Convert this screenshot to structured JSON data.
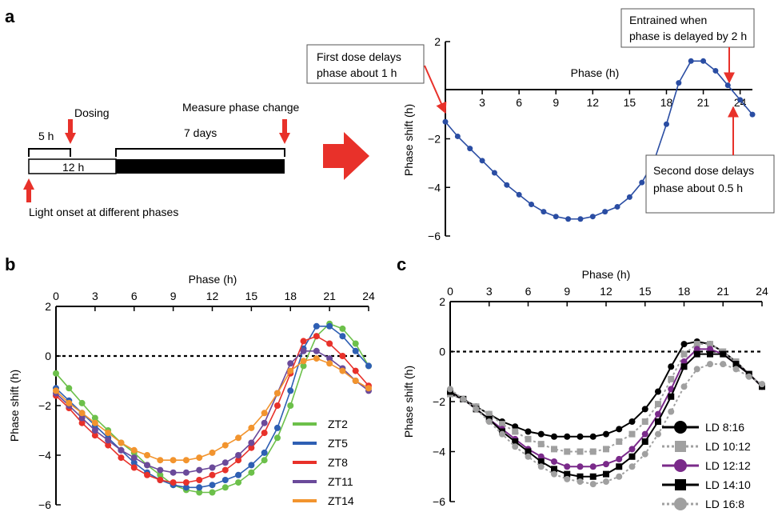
{
  "panels": {
    "a": "a",
    "b": "b",
    "c": "c"
  },
  "schematic": {
    "dosing": "Dosing",
    "measure": "Measure phase change",
    "five_h": "5 h",
    "seven_days": "7 days",
    "twelve_h": "12 h",
    "light_onset": "Light onset at different phases"
  },
  "callouts": {
    "first_dose_1": "First dose delays",
    "first_dose_2": "phase about 1 h",
    "entrained_1": "Entrained when",
    "entrained_2": "phase is delayed by 2 h",
    "second_dose_1": "Second dose delays",
    "second_dose_2": "phase about 0.5 h"
  },
  "colors": {
    "arrow": "#e8312a",
    "line_a": "#2a4da3",
    "ZT2": "#6cc04a",
    "ZT5": "#2e5fb3",
    "ZT8": "#e8312a",
    "ZT11": "#6b4a9a",
    "ZT14": "#f2942e",
    "LD8_16": "#000000",
    "LD10_12": "#a0a0a0",
    "LD12_12": "#7a2a8a",
    "LD14_10": "#000000",
    "LD16_8": "#a0a0a0"
  },
  "chart_data": [
    {
      "id": "a",
      "type": "line",
      "xlabel": "Phase (h)",
      "ylabel": "Phase shift (h)",
      "xticks": [
        3,
        6,
        9,
        12,
        15,
        18,
        21,
        24
      ],
      "yticks": [
        2,
        -2,
        -4,
        -6
      ],
      "xlim": [
        0,
        25
      ],
      "ylim": [
        -6,
        2
      ],
      "zero_line": false,
      "series": [
        {
          "x": [
            0,
            1,
            2,
            3,
            4,
            5,
            6,
            7,
            8,
            9,
            10,
            11,
            12,
            13,
            14,
            15,
            16,
            17,
            18,
            19,
            20,
            21,
            22,
            23,
            24,
            25
          ],
          "y": [
            -1.3,
            -1.9,
            -2.4,
            -2.9,
            -3.4,
            -3.9,
            -4.3,
            -4.7,
            -5.0,
            -5.2,
            -5.3,
            -5.3,
            -5.2,
            -5.0,
            -4.8,
            -4.4,
            -3.8,
            -2.9,
            -1.4,
            0.3,
            1.2,
            1.2,
            0.8,
            0.2,
            -0.4,
            -1.0
          ]
        }
      ]
    },
    {
      "id": "b",
      "type": "line",
      "xlabel": "Phase (h)",
      "ylabel": "Phase shift (h)",
      "xticks": [
        0,
        3,
        6,
        9,
        12,
        15,
        18,
        21,
        24
      ],
      "yticks": [
        2,
        0,
        -2,
        -4,
        -6
      ],
      "xlim": [
        0,
        24
      ],
      "ylim": [
        -6,
        2
      ],
      "zero_line": true,
      "legend_placement": "bottom-right",
      "series": [
        {
          "name": "ZT2",
          "color_key": "ZT2",
          "marker": "circle",
          "x": [
            0,
            1,
            2,
            3,
            4,
            5,
            6,
            7,
            8,
            9,
            10,
            11,
            12,
            13,
            14,
            15,
            16,
            17,
            18,
            19,
            20,
            21,
            22,
            23,
            24
          ],
          "y": [
            -0.7,
            -1.3,
            -1.9,
            -2.5,
            -3.0,
            -3.5,
            -3.9,
            -4.4,
            -4.8,
            -5.2,
            -5.4,
            -5.5,
            -5.5,
            -5.3,
            -5.1,
            -4.7,
            -4.2,
            -3.3,
            -2.0,
            -0.4,
            0.8,
            1.3,
            1.1,
            0.5,
            -0.4
          ]
        },
        {
          "name": "ZT5",
          "color_key": "ZT5",
          "marker": "circle",
          "x": [
            0,
            1,
            2,
            3,
            4,
            5,
            6,
            7,
            8,
            9,
            10,
            11,
            12,
            13,
            14,
            15,
            16,
            17,
            18,
            19,
            20,
            21,
            22,
            23,
            24
          ],
          "y": [
            -1.3,
            -1.8,
            -2.3,
            -2.8,
            -3.3,
            -3.8,
            -4.3,
            -4.7,
            -5.0,
            -5.2,
            -5.3,
            -5.3,
            -5.2,
            -5.0,
            -4.8,
            -4.4,
            -3.9,
            -2.9,
            -1.4,
            0.3,
            1.2,
            1.2,
            0.8,
            0.2,
            -0.4
          ]
        },
        {
          "name": "ZT8",
          "color_key": "ZT8",
          "marker": "circle",
          "x": [
            0,
            1,
            2,
            3,
            4,
            5,
            6,
            7,
            8,
            9,
            10,
            11,
            12,
            13,
            14,
            15,
            16,
            17,
            18,
            19,
            20,
            21,
            22,
            23,
            24
          ],
          "y": [
            -1.6,
            -2.1,
            -2.7,
            -3.2,
            -3.6,
            -4.1,
            -4.5,
            -4.8,
            -5.0,
            -5.1,
            -5.1,
            -5.0,
            -4.8,
            -4.6,
            -4.2,
            -3.7,
            -3.1,
            -2.0,
            -0.7,
            0.6,
            0.8,
            0.5,
            0.0,
            -0.6,
            -1.2
          ]
        },
        {
          "name": "ZT11",
          "color_key": "ZT11",
          "marker": "circle",
          "x": [
            0,
            1,
            2,
            3,
            4,
            5,
            6,
            7,
            8,
            9,
            10,
            11,
            12,
            13,
            14,
            15,
            16,
            17,
            18,
            19,
            20,
            21,
            22,
            23,
            24
          ],
          "y": [
            -1.5,
            -2.0,
            -2.5,
            -3.0,
            -3.4,
            -3.8,
            -4.1,
            -4.4,
            -4.6,
            -4.7,
            -4.7,
            -4.6,
            -4.5,
            -4.3,
            -4.0,
            -3.5,
            -2.7,
            -1.5,
            -0.3,
            0.2,
            0.2,
            -0.1,
            -0.5,
            -1.0,
            -1.4
          ]
        },
        {
          "name": "ZT14",
          "color_key": "ZT14",
          "marker": "circle",
          "x": [
            0,
            1,
            2,
            3,
            4,
            5,
            6,
            7,
            8,
            9,
            10,
            11,
            12,
            13,
            14,
            15,
            16,
            17,
            18,
            19,
            20,
            21,
            22,
            23,
            24
          ],
          "y": [
            -1.4,
            -1.9,
            -2.3,
            -2.7,
            -3.1,
            -3.5,
            -3.8,
            -4.0,
            -4.2,
            -4.2,
            -4.2,
            -4.1,
            -3.9,
            -3.6,
            -3.3,
            -2.9,
            -2.3,
            -1.5,
            -0.6,
            -0.2,
            -0.1,
            -0.3,
            -0.6,
            -1.0,
            -1.3
          ]
        }
      ]
    },
    {
      "id": "c",
      "type": "line",
      "xlabel": "Phase (h)",
      "ylabel": "Phase shift (h)",
      "xticks": [
        0,
        3,
        6,
        9,
        12,
        15,
        18,
        21,
        24
      ],
      "yticks": [
        2,
        0,
        -2,
        -4,
        -6
      ],
      "xlim": [
        0,
        24
      ],
      "ylim": [
        -6,
        2
      ],
      "zero_line": true,
      "legend_placement": "bottom-right",
      "series": [
        {
          "name": "LD 8:16",
          "color_key": "LD8_16",
          "marker": "circle",
          "dash": false,
          "x": [
            0,
            1,
            2,
            3,
            4,
            5,
            6,
            7,
            8,
            9,
            10,
            11,
            12,
            13,
            14,
            15,
            16,
            17,
            18,
            19,
            20,
            21,
            22,
            23,
            24
          ],
          "y": [
            -1.7,
            -1.9,
            -2.2,
            -2.5,
            -2.8,
            -3.0,
            -3.2,
            -3.3,
            -3.4,
            -3.4,
            -3.4,
            -3.4,
            -3.3,
            -3.1,
            -2.8,
            -2.3,
            -1.6,
            -0.6,
            0.3,
            0.4,
            0.3,
            0.0,
            -0.4,
            -0.9,
            -1.4
          ]
        },
        {
          "name": "LD 10:12",
          "color_key": "LD10_12",
          "marker": "square",
          "dash": true,
          "x": [
            0,
            1,
            2,
            3,
            4,
            5,
            6,
            7,
            8,
            9,
            10,
            11,
            12,
            13,
            14,
            15,
            16,
            17,
            18,
            19,
            20,
            21,
            22,
            23,
            24
          ],
          "y": [
            -1.7,
            -1.9,
            -2.2,
            -2.5,
            -2.9,
            -3.2,
            -3.5,
            -3.7,
            -3.9,
            -4.0,
            -4.0,
            -4.0,
            -3.9,
            -3.6,
            -3.3,
            -2.8,
            -2.1,
            -1.1,
            -0.1,
            0.3,
            0.3,
            0.0,
            -0.4,
            -0.9,
            -1.4
          ]
        },
        {
          "name": "LD 12:12",
          "color_key": "LD12_12",
          "marker": "circle",
          "dash": false,
          "x": [
            0,
            1,
            2,
            3,
            4,
            5,
            6,
            7,
            8,
            9,
            10,
            11,
            12,
            13,
            14,
            15,
            16,
            17,
            18,
            19,
            20,
            21,
            22,
            23,
            24
          ],
          "y": [
            -1.6,
            -1.9,
            -2.3,
            -2.7,
            -3.1,
            -3.5,
            -3.9,
            -4.2,
            -4.4,
            -4.6,
            -4.6,
            -4.6,
            -4.5,
            -4.3,
            -3.9,
            -3.3,
            -2.5,
            -1.5,
            -0.4,
            0.1,
            0.1,
            -0.1,
            -0.5,
            -0.9,
            -1.4
          ]
        },
        {
          "name": "LD 14:10",
          "color_key": "LD14_10",
          "marker": "square",
          "dash": false,
          "x": [
            0,
            1,
            2,
            3,
            4,
            5,
            6,
            7,
            8,
            9,
            10,
            11,
            12,
            13,
            14,
            15,
            16,
            17,
            18,
            19,
            20,
            21,
            22,
            23,
            24
          ],
          "y": [
            -1.6,
            -1.9,
            -2.3,
            -2.7,
            -3.2,
            -3.6,
            -4.0,
            -4.4,
            -4.7,
            -4.9,
            -5.0,
            -5.0,
            -4.9,
            -4.6,
            -4.2,
            -3.6,
            -2.8,
            -1.8,
            -0.6,
            -0.1,
            -0.1,
            -0.1,
            -0.5,
            -0.9,
            -1.4
          ]
        },
        {
          "name": "LD 16:8",
          "color_key": "LD16_8",
          "marker": "circle",
          "dash": true,
          "x": [
            0,
            1,
            2,
            3,
            4,
            5,
            6,
            7,
            8,
            9,
            10,
            11,
            12,
            13,
            14,
            15,
            16,
            17,
            18,
            19,
            20,
            21,
            22,
            23,
            24
          ],
          "y": [
            -1.5,
            -1.9,
            -2.3,
            -2.8,
            -3.3,
            -3.8,
            -4.2,
            -4.6,
            -4.9,
            -5.1,
            -5.2,
            -5.3,
            -5.2,
            -5.0,
            -4.6,
            -4.1,
            -3.3,
            -2.4,
            -1.4,
            -0.7,
            -0.5,
            -0.5,
            -0.7,
            -1.0,
            -1.3
          ]
        }
      ]
    }
  ]
}
